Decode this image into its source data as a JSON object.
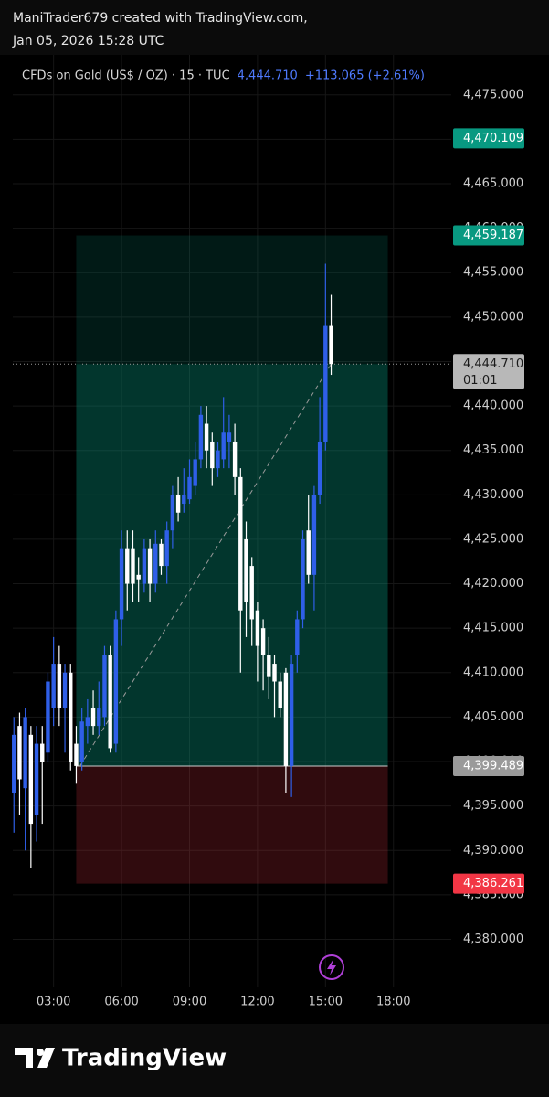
{
  "header": {
    "author": "ManiTrader679 created with TradingView.com,",
    "date": "Jan 05, 2026 15:28 UTC"
  },
  "footer": {
    "brand": "TradingView"
  },
  "chart_data": {
    "type": "candlestick",
    "title": "CFDs on Gold (US$ / OZ) · 15 · TUC",
    "last_price_text": "4,444.710",
    "change_text": "+113.065 (+2.61%)",
    "up_color": "#2f5fe8",
    "down_color": "#ffffff",
    "grid": true,
    "xlim": [
      1.2,
      20.55
    ],
    "ylim": [
      4374.6,
      4479.5
    ],
    "xticks": [
      {
        "value": 3,
        "label": "03:00"
      },
      {
        "value": 6,
        "label": "06:00"
      },
      {
        "value": 9,
        "label": "09:00"
      },
      {
        "value": 12,
        "label": "12:00"
      },
      {
        "value": 15,
        "label": "15:00"
      },
      {
        "value": 18,
        "label": "18:00"
      }
    ],
    "yticks": [
      {
        "value": 4380,
        "label": "4,380.000"
      },
      {
        "value": 4385,
        "label": "4,385.000"
      },
      {
        "value": 4390,
        "label": "4,390.000"
      },
      {
        "value": 4395,
        "label": "4,395.000"
      },
      {
        "value": 4400,
        "label": "4,400.000"
      },
      {
        "value": 4405,
        "label": "4,405.000"
      },
      {
        "value": 4410,
        "label": "4,410.000"
      },
      {
        "value": 4415,
        "label": "4,415.000"
      },
      {
        "value": 4420,
        "label": "4,420.000"
      },
      {
        "value": 4425,
        "label": "4,425.000"
      },
      {
        "value": 4430,
        "label": "4,430.000"
      },
      {
        "value": 4435,
        "label": "4,435.000"
      },
      {
        "value": 4440,
        "label": "4,440.000"
      },
      {
        "value": 4445,
        "label": "4,445.000"
      },
      {
        "value": 4450,
        "label": "4,450.000"
      },
      {
        "value": 4455,
        "label": "4,455.000"
      },
      {
        "value": 4460,
        "label": "4,460.000"
      },
      {
        "value": 4465,
        "label": "4,465.000"
      },
      {
        "value": 4470,
        "label": "4,470.000"
      },
      {
        "value": 4475,
        "label": "4,475.000"
      }
    ],
    "x": [
      1.25,
      1.5,
      1.75,
      2,
      2.25,
      2.5,
      2.75,
      3,
      3.25,
      3.5,
      3.75,
      4,
      4.25,
      4.5,
      4.75,
      5,
      5.25,
      5.5,
      5.75,
      6,
      6.25,
      6.5,
      6.75,
      7,
      7.25,
      7.5,
      7.75,
      8,
      8.25,
      8.5,
      8.75,
      9,
      9.25,
      9.5,
      9.75,
      10,
      10.25,
      10.5,
      10.75,
      11,
      11.25,
      11.5,
      11.75,
      12,
      12.25,
      12.5,
      12.75,
      13,
      13.25,
      13.5,
      13.75,
      14,
      14.25,
      14.5,
      14.75,
      15,
      15.25
    ],
    "open": [
      4396.5,
      4404,
      4397,
      4403,
      4394,
      4402,
      4401,
      4406,
      4411,
      4406,
      4410,
      4402,
      4400,
      4404,
      4406,
      4404,
      4405,
      4412,
      4402,
      4416,
      4424,
      4424,
      4421,
      4420,
      4424,
      4420,
      4424.5,
      4422,
      4426,
      4430,
      4429,
      4429.5,
      4431,
      4434,
      4438,
      4436,
      4433,
      4434,
      4436,
      4436,
      4432,
      4425,
      4422,
      4417,
      4415,
      4412,
      4411,
      4409,
      4410,
      4399.5,
      4412,
      4416,
      4426,
      4421,
      4430,
      4436,
      4449
    ],
    "high": [
      4405,
      4405.5,
      4406,
      4404,
      4404,
      4404,
      4410,
      4414,
      4413,
      4411,
      4411,
      4404,
      4406,
      4407,
      4408,
      4409,
      4413,
      4413,
      4417,
      4426,
      4426,
      4426,
      4423,
      4425,
      4425,
      4426,
      4425,
      4427,
      4431,
      4432,
      4433,
      4434,
      4436,
      4440,
      4440,
      4437,
      4436,
      4441,
      4439,
      4438,
      4433,
      4427,
      4423,
      4418,
      4416,
      4414,
      4412,
      4410,
      4410.5,
      4412,
      4417,
      4426,
      4430,
      4431,
      4441,
      4456,
      4452.5
    ],
    "low": [
      4392,
      4394,
      4390,
      4388,
      4391,
      4393,
      4400,
      4404,
      4404,
      4401,
      4399,
      4397.5,
      4399,
      4402,
      4403,
      4403,
      4404,
      4401,
      4401,
      4413,
      4417,
      4418,
      4418,
      4419,
      4418,
      4419,
      4421,
      4420,
      4424,
      4427,
      4428,
      4429,
      4430,
      4433,
      4433,
      4431,
      4432,
      4433,
      4433,
      4430,
      4410,
      4414,
      4413,
      4409,
      4408,
      4407,
      4405,
      4405,
      4396.5,
      4396,
      4410,
      4415,
      4420,
      4417,
      4429,
      4435,
      4443.5
    ],
    "close": [
      4403,
      4398,
      4405,
      4393,
      4402,
      4400,
      4409,
      4411,
      4406,
      4410,
      4400,
      4399.5,
      4404.5,
      4405,
      4404,
      4406,
      4412,
      4401.5,
      4416,
      4424,
      4420,
      4420,
      4420.5,
      4424,
      4420,
      4424.5,
      4422,
      4426,
      4430,
      4428,
      4430,
      4432,
      4434,
      4439,
      4435,
      4433,
      4435,
      4437,
      4437,
      4432,
      4417,
      4418,
      4416,
      4413,
      4412,
      4409.5,
      4409,
      4406,
      4399.5,
      4411,
      4416,
      4425,
      4421,
      4430,
      4436,
      4449,
      4444.71
    ],
    "position": {
      "x": [
        4.0,
        17.75
      ],
      "entry": 4399.489,
      "target": 4459.187,
      "stop": 4386.261,
      "profit_color": "#089981",
      "loss_color": "#f23645"
    },
    "last_price": 4444.71,
    "price_labels": [
      {
        "value": 4470.109,
        "label": "4,470.109",
        "color": "#089981",
        "text_color": "#ffffff"
      },
      {
        "value": 4459.187,
        "label": "4,459.187",
        "color": "#089981",
        "text_color": "#ffffff"
      },
      {
        "value": 4444.71,
        "label": "4,444.710",
        "sublabel": "01:01",
        "color": "#b8b8b8",
        "text_color": "#1a1a1a"
      },
      {
        "value": 4399.489,
        "label": "4,399.489",
        "color": "#9a9a9a",
        "text_color": "#ffffff"
      },
      {
        "value": 4386.261,
        "label": "4,386.261",
        "color": "#f23645",
        "text_color": "#ffffff"
      }
    ]
  }
}
